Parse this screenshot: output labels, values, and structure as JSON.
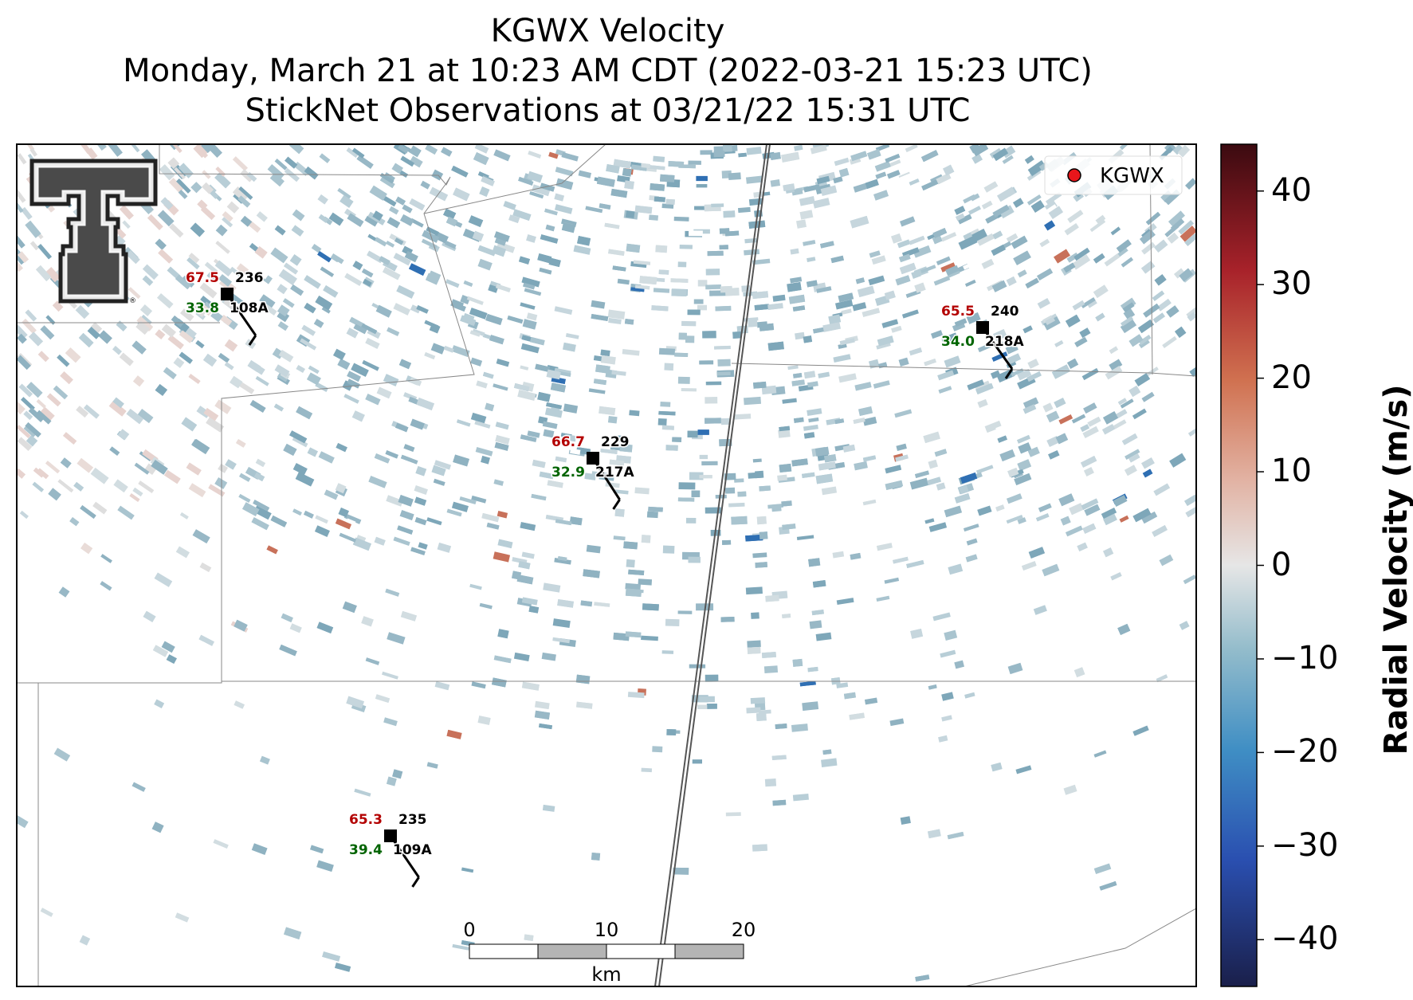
{
  "title": {
    "line1": "KGWX Velocity",
    "line2": "Monday, March 21 at 10:23 AM CDT (2022-03-21 15:23 UTC)",
    "line3": "StickNet Observations at 03/21/22 15:31 UTC"
  },
  "legend": {
    "label": "KGWX",
    "marker_color": "#e8161b"
  },
  "colorbar": {
    "title": "Radial Velocity (m/s)",
    "range": [
      -45,
      45
    ],
    "ticks": [
      "40",
      "30",
      "20",
      "10",
      "0",
      "−10",
      "−20",
      "−30",
      "−40"
    ]
  },
  "scale_bar": {
    "ticks": [
      "0",
      "10",
      "20"
    ],
    "unit": "km"
  },
  "stations": [
    {
      "id": "108A",
      "temp": "67.5",
      "dir": "236",
      "dew": "33.8",
      "temp_color": "#b30000",
      "dew_color": "#006400"
    },
    {
      "id": "218A",
      "temp": "65.5",
      "dir": "240",
      "dew": "34.0",
      "temp_color": "#b30000",
      "dew_color": "#006400"
    },
    {
      "id": "217A",
      "temp": "66.7",
      "dir": "229",
      "dew": "32.9",
      "temp_color": "#b30000",
      "dew_color": "#006400"
    },
    {
      "id": "109A",
      "temp": "65.3",
      "dir": "235",
      "dew": "39.4",
      "temp_color": "#b30000",
      "dew_color": "#006400"
    }
  ],
  "logo": {
    "name": "texas-tech-double-t-logo"
  }
}
